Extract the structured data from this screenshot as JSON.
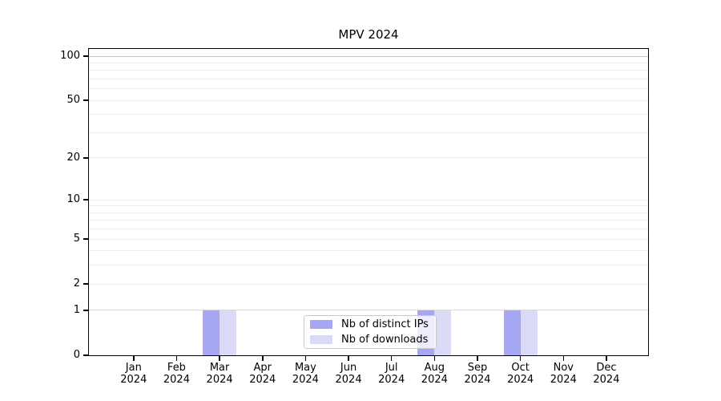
{
  "figure": {
    "title": "MPV 2024"
  },
  "chart_data": {
    "type": "bar",
    "title": "MPV 2024",
    "xlabel": "",
    "ylabel": "",
    "categories": [
      "Jan 2024",
      "Feb 2024",
      "Mar 2024",
      "Apr 2024",
      "May 2024",
      "Jun 2024",
      "Jul 2024",
      "Aug 2024",
      "Sep 2024",
      "Oct 2024",
      "Nov 2024",
      "Dec 2024"
    ],
    "x_tick_labels": [
      {
        "month": "Jan",
        "year": "2024"
      },
      {
        "month": "Feb",
        "year": "2024"
      },
      {
        "month": "Mar",
        "year": "2024"
      },
      {
        "month": "Apr",
        "year": "2024"
      },
      {
        "month": "May",
        "year": "2024"
      },
      {
        "month": "Jun",
        "year": "2024"
      },
      {
        "month": "Jul",
        "year": "2024"
      },
      {
        "month": "Aug",
        "year": "2024"
      },
      {
        "month": "Sep",
        "year": "2024"
      },
      {
        "month": "Oct",
        "year": "2024"
      },
      {
        "month": "Nov",
        "year": "2024"
      },
      {
        "month": "Dec",
        "year": "2024"
      }
    ],
    "series": [
      {
        "name": "Nb of distinct IPs",
        "color": "#a6a6f2",
        "values": [
          0,
          0,
          1,
          0,
          0,
          0,
          0,
          1,
          0,
          1,
          0,
          0
        ]
      },
      {
        "name": "Nb of downloads",
        "color": "#dadaf7",
        "values": [
          0,
          0,
          1,
          0,
          0,
          0,
          0,
          1,
          0,
          1,
          0,
          0
        ]
      }
    ],
    "y_scale": "symlog (position ~ log(1+v))",
    "y_ticks": [
      0,
      1,
      2,
      5,
      10,
      20,
      50,
      100
    ],
    "y_minor_ticks": [
      3,
      4,
      6,
      7,
      8,
      9,
      30,
      40,
      60,
      70,
      80,
      90
    ],
    "ylim": [
      0,
      100
    ],
    "grid": "horizontal major+minor",
    "legend_position": "inside bottom-center"
  },
  "legend": {
    "items": [
      {
        "label": "Nb of distinct IPs",
        "swatch_color": "#a6a6f2"
      },
      {
        "label": "Nb of downloads",
        "swatch_color": "#dadaf7"
      }
    ]
  },
  "colors": {
    "background": "#ffffff",
    "axis": "#000000",
    "text": "#000000",
    "grid_top_100": "#c6c6c6",
    "grid_level_1": "#d9d9d9",
    "grid_faint": "#ececec",
    "bar_distinct_ips": "#a6a6f2",
    "bar_downloads": "#dadaf7"
  }
}
